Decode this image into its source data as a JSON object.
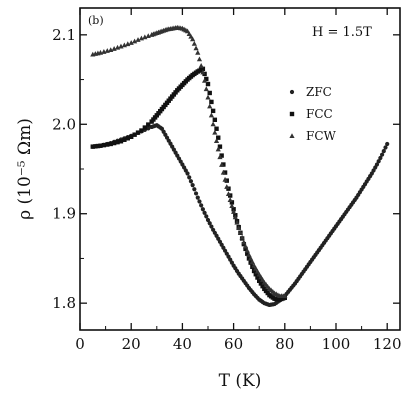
{
  "chart_data": {
    "type": "scatter",
    "panel_label": "(b)",
    "annotation": "H = 1.5T",
    "xlabel": "T (K)",
    "ylabel": "ρ (10⁻⁵ Ωm)",
    "xlim": [
      0,
      125
    ],
    "ylim": [
      1.77,
      2.13
    ],
    "xticks": [
      0,
      20,
      40,
      60,
      80,
      100,
      120
    ],
    "yticks": [
      1.8,
      1.9,
      2.0,
      2.1
    ],
    "ytick_labels": [
      "1.8",
      "1.9",
      "2.0",
      "2.1"
    ],
    "grid": false,
    "legend_position": "right",
    "series": [
      {
        "name": "ZFC",
        "marker": "circle",
        "color": "#222222",
        "x": [
          5,
          8,
          12,
          16,
          20,
          24,
          28,
          30,
          32,
          34,
          36,
          38,
          40,
          42,
          44,
          46,
          48,
          50,
          52,
          54,
          56,
          58,
          60,
          62,
          64,
          66,
          68,
          70,
          72,
          74,
          76,
          78,
          80,
          82,
          84,
          86,
          88,
          90,
          92,
          94,
          96,
          98,
          100,
          102,
          104,
          106,
          108,
          110,
          112,
          114,
          116,
          118,
          120
        ],
        "y": [
          1.975,
          1.976,
          1.979,
          1.983,
          1.987,
          1.992,
          1.997,
          1.999,
          1.995,
          1.985,
          1.975,
          1.965,
          1.955,
          1.945,
          1.932,
          1.918,
          1.905,
          1.893,
          1.882,
          1.872,
          1.862,
          1.852,
          1.842,
          1.833,
          1.825,
          1.817,
          1.81,
          1.804,
          1.8,
          1.798,
          1.799,
          1.803,
          1.808,
          1.815,
          1.822,
          1.83,
          1.838,
          1.846,
          1.854,
          1.862,
          1.87,
          1.878,
          1.886,
          1.894,
          1.902,
          1.91,
          1.918,
          1.927,
          1.936,
          1.945,
          1.955,
          1.966,
          1.978
        ]
      },
      {
        "name": "FCC",
        "marker": "square",
        "color": "#111111",
        "x": [
          5,
          8,
          12,
          16,
          20,
          24,
          28,
          30,
          32,
          34,
          36,
          38,
          40,
          42,
          44,
          46,
          48,
          50,
          52,
          54,
          56,
          58,
          60,
          62,
          64,
          66,
          68,
          70,
          72,
          74,
          76,
          78,
          80
        ],
        "y": [
          1.975,
          1.976,
          1.978,
          1.981,
          1.986,
          1.993,
          2.003,
          2.01,
          2.017,
          2.024,
          2.031,
          2.038,
          2.044,
          2.05,
          2.055,
          2.059,
          2.062,
          2.045,
          2.015,
          1.985,
          1.955,
          1.928,
          1.905,
          1.885,
          1.866,
          1.85,
          1.836,
          1.825,
          1.816,
          1.809,
          1.805,
          1.804,
          1.806
        ]
      },
      {
        "name": "FCW",
        "marker": "triangle",
        "color": "#333333",
        "x": [
          5,
          8,
          12,
          16,
          20,
          24,
          28,
          30,
          32,
          34,
          36,
          38,
          40,
          42,
          44,
          46,
          48,
          50,
          52,
          54,
          56,
          58,
          60,
          62,
          64,
          66,
          68,
          70,
          72,
          74,
          76,
          78,
          80
        ],
        "y": [
          2.078,
          2.08,
          2.083,
          2.087,
          2.091,
          2.096,
          2.1,
          2.102,
          2.104,
          2.106,
          2.107,
          2.108,
          2.107,
          2.104,
          2.095,
          2.08,
          2.058,
          2.03,
          2.0,
          1.972,
          1.946,
          1.922,
          1.902,
          1.884,
          1.868,
          1.854,
          1.842,
          1.832,
          1.823,
          1.816,
          1.811,
          1.808,
          1.808
        ]
      }
    ]
  }
}
